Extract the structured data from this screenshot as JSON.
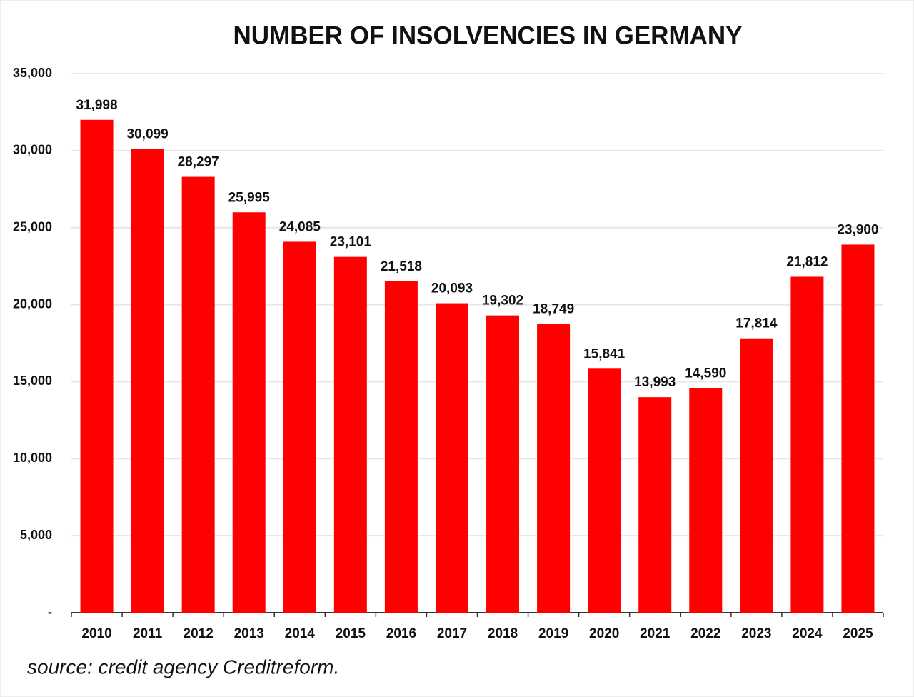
{
  "chart_data": {
    "type": "bar",
    "title": "NUMBER OF INSOLVENCIES IN GERMANY",
    "categories": [
      "2010",
      "2011",
      "2012",
      "2013",
      "2014",
      "2015",
      "2016",
      "2017",
      "2018",
      "2019",
      "2020",
      "2021",
      "2022",
      "2023",
      "2024",
      "2025"
    ],
    "values": [
      31998,
      30099,
      28297,
      25995,
      24085,
      23101,
      21518,
      20093,
      19302,
      18749,
      15841,
      13993,
      14590,
      17814,
      21812,
      23900
    ],
    "value_labels": [
      "31,998",
      "30,099",
      "28,297",
      "25,995",
      "24,085",
      "23,101",
      "21,518",
      "20,093",
      "19,302",
      "18,749",
      "15,841",
      "13,993",
      "14,590",
      "17,814",
      "21,812",
      "23,900"
    ],
    "color": "#ff0000",
    "ylim": [
      0,
      35000
    ],
    "yticks": [
      {
        "value": 0,
        "label": "-"
      },
      {
        "value": 5000,
        "label": "5,000"
      },
      {
        "value": 10000,
        "label": "10,000"
      },
      {
        "value": 15000,
        "label": "15,000"
      },
      {
        "value": 20000,
        "label": "20,000"
      },
      {
        "value": 25000,
        "label": "25,000"
      },
      {
        "value": 30000,
        "label": "30,000"
      },
      {
        "value": 35000,
        "label": "35,000"
      }
    ],
    "grid": true,
    "source": "source: credit agency Creditreform."
  }
}
